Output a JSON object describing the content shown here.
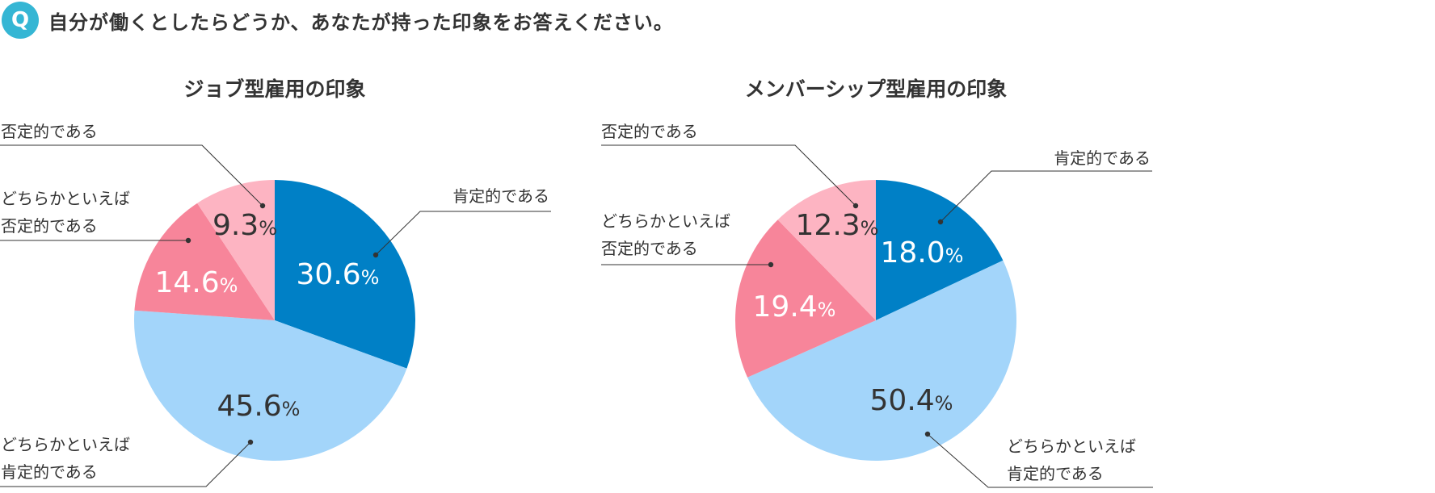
{
  "question": {
    "badge": "Q",
    "text": "自分が働くとしたらどうか、あなたが持った印象をお答えください。"
  },
  "colors": {
    "badge": "#35b6d4",
    "affirmative": "#0080c6",
    "somewhat_affirmative": "#a3d5fa",
    "somewhat_negative": "#f7859a",
    "negative": "#fdb4c2",
    "leader_line": "#333333"
  },
  "chart_data": [
    {
      "type": "pie",
      "title": "ジョブ型雇用の印象",
      "start_angle_deg": 0,
      "direction": "clockwise",
      "slices": [
        {
          "label": "肯定的である",
          "value": 30.6,
          "display": "30.6",
          "color_key": "affirmative"
        },
        {
          "label": "どちらかといえば肯定的である",
          "value": 45.6,
          "display": "45.6",
          "color_key": "somewhat_affirmative"
        },
        {
          "label": "どちらかといえば否定的である",
          "value": 14.6,
          "display": "14.6",
          "color_key": "somewhat_negative"
        },
        {
          "label": "否定的である",
          "value": 9.3,
          "display": "9.3",
          "color_key": "negative"
        }
      ],
      "unit": "%"
    },
    {
      "type": "pie",
      "title": "メンバーシップ型雇用の印象",
      "start_angle_deg": 0,
      "direction": "clockwise",
      "slices": [
        {
          "label": "肯定的である",
          "value": 18.0,
          "display": "18.0",
          "color_key": "affirmative"
        },
        {
          "label": "どちらかといえば肯定的である",
          "value": 50.4,
          "display": "50.4",
          "color_key": "somewhat_affirmative"
        },
        {
          "label": "どちらかといえば否定的である",
          "value": 19.4,
          "display": "19.4",
          "color_key": "somewhat_negative"
        },
        {
          "label": "否定的である",
          "value": 12.3,
          "display": "12.3",
          "color_key": "negative"
        }
      ],
      "unit": "%"
    }
  ],
  "labels": {
    "affirmative": [
      "肯定的である"
    ],
    "somewhat_affirmative": [
      "どちらかといえば",
      "肯定的である"
    ],
    "somewhat_negative": [
      "どちらかといえば",
      "否定的である"
    ],
    "negative": [
      "否定的である"
    ]
  }
}
